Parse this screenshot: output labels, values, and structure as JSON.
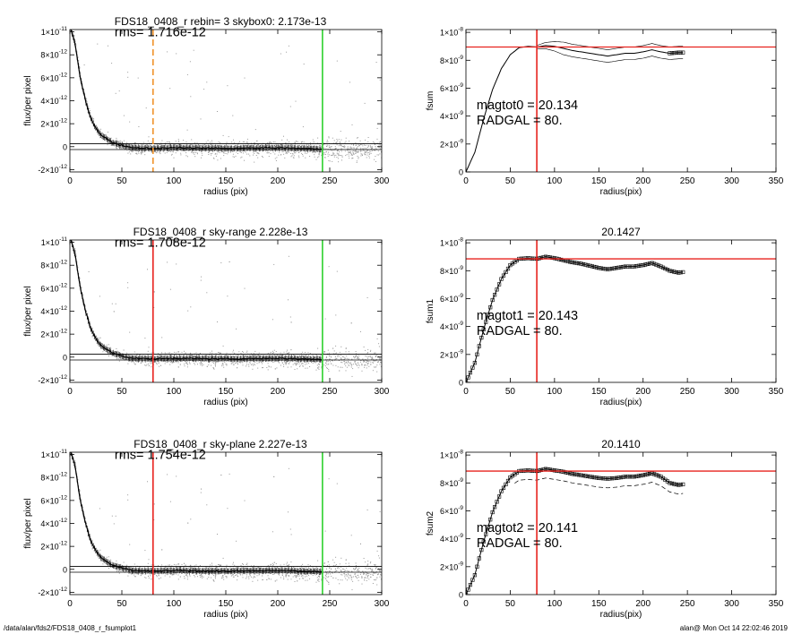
{
  "colors": {
    "background": "#ffffff",
    "axes": "#000000",
    "scatter": "#9a9a9a",
    "profile": "#000000",
    "vline_red": "#e8231f",
    "vline_green": "#2ed12e",
    "vline_orange": "#f0932b",
    "hline_red": "#e8231f"
  },
  "footer": {
    "left": "/data/alan/fds2/FDS18_0408_r_fsumplot1",
    "right": "alan@  Mon Oct 14 22:02:46 2019"
  },
  "chart_data": [
    {
      "type": "scatter",
      "row": 0,
      "col": 0,
      "title": "FDS18_0408_r rebin= 3    skybox0:  2.173e-13",
      "xlabel": "radius (pix)",
      "ylabel": "flux/per pixel",
      "xlim": [
        0,
        300
      ],
      "ylim": [
        -2.2e-12,
        1.02e-11
      ],
      "xticks": [
        0,
        50,
        100,
        150,
        200,
        250,
        300
      ],
      "xtick_labels": [
        "0",
        "50",
        "100",
        "150",
        "200",
        "250",
        "300"
      ],
      "yticks": [
        -2e-12,
        0,
        2e-12,
        4e-12,
        6e-12,
        8e-12,
        1e-11
      ],
      "ytick_labels": [
        {
          "base": "-2×10",
          "exp": "-12"
        },
        {
          "base": "0",
          "exp": ""
        },
        {
          "base": "2×10",
          "exp": "-12"
        },
        {
          "base": "4×10",
          "exp": "-12"
        },
        {
          "base": "6×10",
          "exp": "-12"
        },
        {
          "base": "8×10",
          "exp": "-12"
        },
        {
          "base": "1×10",
          "exp": "-11"
        }
      ],
      "annotations": [
        {
          "text": "rms= 1.716e-12",
          "x": 43,
          "y": 9.6e-12
        }
      ],
      "vlines": [
        {
          "x": 80,
          "color": "#f0932b",
          "dashed": true
        },
        {
          "x": 243,
          "color": "#2ed12e",
          "dashed": false
        }
      ],
      "hlines": [
        {
          "y": 2.5e-13,
          "color": "#000000"
        },
        {
          "y": -2.5e-13,
          "color": "#000000"
        }
      ],
      "profile": {
        "x": [
          1,
          5,
          10,
          15,
          20,
          25,
          30,
          40,
          50,
          60,
          80,
          100,
          150,
          200,
          243
        ],
        "y": [
          1.02e-11,
          9e-12,
          6e-12,
          4e-12,
          2.5e-12,
          1.6e-12,
          1e-12,
          4e-13,
          1e-13,
          -1e-13,
          -1.5e-13,
          -1e-13,
          -1.5e-13,
          -1e-13,
          -2e-13
        ]
      },
      "scatter_noise": {
        "inner_sigma": 1.2e-12,
        "outer_start": 243,
        "outer_sigma": 1.5e-12,
        "count": 1500
      }
    },
    {
      "type": "line",
      "row": 0,
      "col": 1,
      "title": "",
      "xlabel": "radius(pix)",
      "ylabel": "fsum",
      "xlim": [
        0,
        350
      ],
      "ylim": [
        0,
        1.02e-08
      ],
      "xticks": [
        0,
        50,
        100,
        150,
        200,
        250,
        300,
        350
      ],
      "xtick_labels": [
        "0",
        "50",
        "100",
        "150",
        "200",
        "250",
        "300",
        "350"
      ],
      "yticks": [
        0,
        2e-09,
        4e-09,
        6e-09,
        8e-09,
        1e-08
      ],
      "ytick_labels": [
        {
          "base": "0",
          "exp": ""
        },
        {
          "base": "2×10",
          "exp": "-9"
        },
        {
          "base": "4×10",
          "exp": "-9"
        },
        {
          "base": "6×10",
          "exp": "-9"
        },
        {
          "base": "8×10",
          "exp": "-9"
        },
        {
          "base": "1×10",
          "exp": "-8"
        }
      ],
      "annotations": [
        {
          "text": "magtot0 =  20.134",
          "x": 12,
          "y": 4.5e-09
        },
        {
          "text": "RADGAL =     80.",
          "x": 12,
          "y": 3.4e-09
        }
      ],
      "vlines": [
        {
          "x": 80,
          "color": "#e8231f",
          "dashed": false
        }
      ],
      "hlines": [
        {
          "y": 8.95e-09,
          "color": "#e8231f"
        }
      ],
      "curve": {
        "x": [
          0,
          10,
          20,
          30,
          40,
          50,
          60,
          70,
          80,
          90,
          100,
          110,
          120,
          130,
          140,
          150,
          160,
          170,
          180,
          190,
          200,
          210,
          220,
          230,
          240,
          245
        ],
        "y": [
          0,
          1.4e-09,
          3.8e-09,
          5.9e-09,
          7.4e-09,
          8.4e-09,
          8.9e-09,
          9e-09,
          8.95e-09,
          9.05e-09,
          9e-09,
          8.85e-09,
          8.7e-09,
          8.6e-09,
          8.5e-09,
          8.4e-09,
          8.3e-09,
          8.4e-09,
          8.5e-09,
          8.5e-09,
          8.6e-09,
          8.75e-09,
          8.6e-09,
          8.5e-09,
          8.55e-09,
          8.55e-09
        ]
      },
      "upper_curve_offset": 4.5e-10,
      "lower_curve_offset": -4.5e-10,
      "marker_start": 230
    },
    {
      "type": "scatter",
      "row": 1,
      "col": 0,
      "title": "FDS18_0408_r sky-range  2.228e-13",
      "xlabel": "radius (pix)",
      "ylabel": "flux/per pixel",
      "xlim": [
        0,
        300
      ],
      "ylim": [
        -2.2e-12,
        1.02e-11
      ],
      "xticks": [
        0,
        50,
        100,
        150,
        200,
        250,
        300
      ],
      "xtick_labels": [
        "0",
        "50",
        "100",
        "150",
        "200",
        "250",
        "300"
      ],
      "yticks": [
        -2e-12,
        0,
        2e-12,
        4e-12,
        6e-12,
        8e-12,
        1e-11
      ],
      "ytick_labels": [
        {
          "base": "-2×10",
          "exp": "-12"
        },
        {
          "base": "0",
          "exp": ""
        },
        {
          "base": "2×10",
          "exp": "-12"
        },
        {
          "base": "4×10",
          "exp": "-12"
        },
        {
          "base": "6×10",
          "exp": "-12"
        },
        {
          "base": "8×10",
          "exp": "-12"
        },
        {
          "base": "1×10",
          "exp": "-11"
        }
      ],
      "annotations": [
        {
          "text": "rms= 1.708e-12",
          "x": 43,
          "y": 9.6e-12
        }
      ],
      "vlines": [
        {
          "x": 80,
          "color": "#e8231f",
          "dashed": false
        },
        {
          "x": 243,
          "color": "#2ed12e",
          "dashed": false
        }
      ],
      "hlines": [
        {
          "y": 2.5e-13,
          "color": "#000000"
        },
        {
          "y": -2.5e-13,
          "color": "#000000"
        }
      ],
      "profile": {
        "x": [
          1,
          5,
          10,
          15,
          20,
          25,
          30,
          40,
          50,
          60,
          80,
          100,
          150,
          200,
          243
        ],
        "y": [
          1.02e-11,
          9e-12,
          6e-12,
          4e-12,
          2.5e-12,
          1.6e-12,
          1e-12,
          4e-13,
          1e-13,
          -1e-13,
          -1.5e-13,
          -1e-13,
          -1.5e-13,
          -1e-13,
          -2e-13
        ]
      },
      "scatter_noise": {
        "inner_sigma": 1.2e-12,
        "outer_start": 243,
        "outer_sigma": 1.5e-12,
        "count": 1500
      }
    },
    {
      "type": "scatter",
      "row": 1,
      "col": 1,
      "title": "20.1427",
      "xlabel": "radius(pix)",
      "ylabel": "fsum1",
      "xlim": [
        0,
        350
      ],
      "ylim": [
        0,
        1.02e-08
      ],
      "xticks": [
        0,
        50,
        100,
        150,
        200,
        250,
        300,
        350
      ],
      "xtick_labels": [
        "0",
        "50",
        "100",
        "150",
        "200",
        "250",
        "300",
        "350"
      ],
      "yticks": [
        0,
        2e-09,
        4e-09,
        6e-09,
        8e-09,
        1e-08
      ],
      "ytick_labels": [
        {
          "base": "0",
          "exp": ""
        },
        {
          "base": "2×10",
          "exp": "-9"
        },
        {
          "base": "4×10",
          "exp": "-9"
        },
        {
          "base": "6×10",
          "exp": "-9"
        },
        {
          "base": "8×10",
          "exp": "-9"
        },
        {
          "base": "1×10",
          "exp": "-8"
        }
      ],
      "annotations": [
        {
          "text": "magtot1 =  20.143",
          "x": 12,
          "y": 4.5e-09
        },
        {
          "text": "RADGAL =     80.",
          "x": 12,
          "y": 3.4e-09
        }
      ],
      "vlines": [
        {
          "x": 80,
          "color": "#e8231f",
          "dashed": false
        }
      ],
      "hlines": [
        {
          "y": 8.85e-09,
          "color": "#e8231f"
        }
      ],
      "curve": {
        "x": [
          0,
          10,
          20,
          30,
          40,
          50,
          60,
          70,
          80,
          90,
          100,
          110,
          120,
          130,
          140,
          150,
          160,
          170,
          180,
          190,
          200,
          210,
          220,
          230,
          240,
          245
        ],
        "y": [
          0,
          1.4e-09,
          3.8e-09,
          5.9e-09,
          7.4e-09,
          8.4e-09,
          8.85e-09,
          8.9e-09,
          8.85e-09,
          9e-09,
          8.9e-09,
          8.75e-09,
          8.6e-09,
          8.5e-09,
          8.35e-09,
          8.2e-09,
          8.1e-09,
          8.2e-09,
          8.3e-09,
          8.3e-09,
          8.4e-09,
          8.55e-09,
          8.3e-09,
          8e-09,
          7.85e-09,
          7.9e-09
        ]
      },
      "marker_start": 0
    },
    {
      "type": "scatter",
      "row": 2,
      "col": 0,
      "title": "FDS18_0408_r sky-plane  2.227e-13",
      "xlabel": "radius (pix)",
      "ylabel": "flux/per pixel",
      "xlim": [
        0,
        300
      ],
      "ylim": [
        -2.2e-12,
        1.02e-11
      ],
      "xticks": [
        0,
        50,
        100,
        150,
        200,
        250,
        300
      ],
      "xtick_labels": [
        "0",
        "50",
        "100",
        "150",
        "200",
        "250",
        "300"
      ],
      "yticks": [
        -2e-12,
        0,
        2e-12,
        4e-12,
        6e-12,
        8e-12,
        1e-11
      ],
      "ytick_labels": [
        {
          "base": "-2×10",
          "exp": "-12"
        },
        {
          "base": "0",
          "exp": ""
        },
        {
          "base": "2×10",
          "exp": "-12"
        },
        {
          "base": "4×10",
          "exp": "-12"
        },
        {
          "base": "6×10",
          "exp": "-12"
        },
        {
          "base": "8×10",
          "exp": "-12"
        },
        {
          "base": "1×10",
          "exp": "-11"
        }
      ],
      "annotations": [
        {
          "text": "rms= 1.754e-12",
          "x": 43,
          "y": 9.6e-12
        }
      ],
      "vlines": [
        {
          "x": 80,
          "color": "#e8231f",
          "dashed": false
        },
        {
          "x": 243,
          "color": "#2ed12e",
          "dashed": false
        }
      ],
      "hlines": [
        {
          "y": 2.5e-13,
          "color": "#000000"
        },
        {
          "y": -2.5e-13,
          "color": "#000000"
        }
      ],
      "profile": {
        "x": [
          1,
          5,
          10,
          15,
          20,
          25,
          30,
          40,
          50,
          60,
          80,
          100,
          150,
          200,
          243
        ],
        "y": [
          1.02e-11,
          9e-12,
          6e-12,
          4e-12,
          2.5e-12,
          1.6e-12,
          1e-12,
          4e-13,
          1e-13,
          -1e-13,
          -1.5e-13,
          -1e-13,
          -1.5e-13,
          -1e-13,
          -2e-13
        ]
      },
      "scatter_noise": {
        "inner_sigma": 1.2e-12,
        "outer_start": 243,
        "outer_sigma": 1.6e-12,
        "count": 1500
      }
    },
    {
      "type": "scatter",
      "row": 2,
      "col": 1,
      "title": "20.1410",
      "xlabel": "radius(pix)",
      "ylabel": "fsum2",
      "xlim": [
        0,
        350
      ],
      "ylim": [
        0,
        1.02e-08
      ],
      "xticks": [
        0,
        50,
        100,
        150,
        200,
        250,
        300,
        350
      ],
      "xtick_labels": [
        "0",
        "50",
        "100",
        "150",
        "200",
        "250",
        "300",
        "350"
      ],
      "yticks": [
        0,
        2e-09,
        4e-09,
        6e-09,
        8e-09,
        1e-08
      ],
      "ytick_labels": [
        {
          "base": "0",
          "exp": ""
        },
        {
          "base": "2×10",
          "exp": "-9"
        },
        {
          "base": "4×10",
          "exp": "-9"
        },
        {
          "base": "6×10",
          "exp": "-9"
        },
        {
          "base": "8×10",
          "exp": "-9"
        },
        {
          "base": "1×10",
          "exp": "-8"
        }
      ],
      "annotations": [
        {
          "text": "magtot2 =  20.141",
          "x": 12,
          "y": 4.5e-09
        },
        {
          "text": "RADGAL =     80.",
          "x": 12,
          "y": 3.4e-09
        }
      ],
      "vlines": [
        {
          "x": 80,
          "color": "#e8231f",
          "dashed": false
        }
      ],
      "hlines": [
        {
          "y": 8.85e-09,
          "color": "#e8231f"
        }
      ],
      "curve": {
        "x": [
          0,
          10,
          20,
          30,
          40,
          50,
          60,
          70,
          80,
          90,
          100,
          110,
          120,
          130,
          140,
          150,
          160,
          170,
          180,
          190,
          200,
          210,
          220,
          230,
          240,
          245
        ],
        "y": [
          0,
          1.4e-09,
          3.8e-09,
          5.9e-09,
          7.4e-09,
          8.4e-09,
          8.85e-09,
          8.9e-09,
          8.85e-09,
          9e-09,
          8.9e-09,
          8.8e-09,
          8.65e-09,
          8.55e-09,
          8.45e-09,
          8.35e-09,
          8.3e-09,
          8.35e-09,
          8.45e-09,
          8.45e-09,
          8.55e-09,
          8.7e-09,
          8.45e-09,
          8e-09,
          7.85e-09,
          7.9e-09
        ]
      },
      "dashed_curve_offset": -6.5e-10,
      "marker_start": 0
    }
  ]
}
